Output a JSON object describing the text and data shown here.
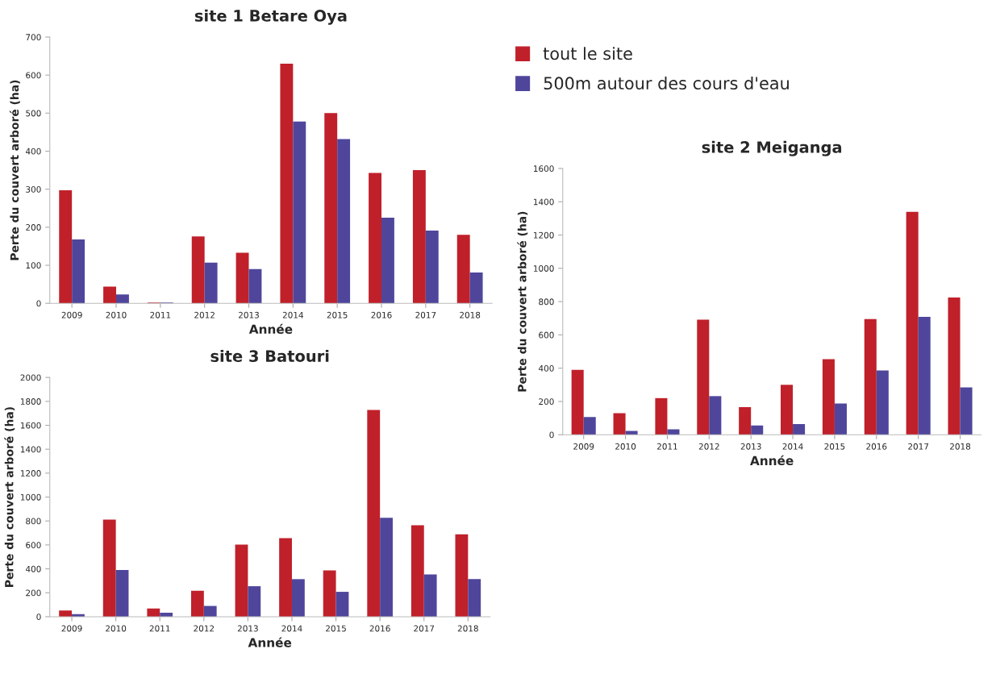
{
  "chart_data": [
    {
      "type": "bar",
      "title": "site 1 Betare Oya",
      "xlabel": "Année",
      "ylabel": "Perte du couvert arboré (ha)",
      "categories": [
        "2009",
        "2010",
        "2011",
        "2012",
        "2013",
        "2014",
        "2015",
        "2016",
        "2017",
        "2018"
      ],
      "ylim": [
        0,
        700
      ],
      "yticks": [
        0,
        100,
        200,
        300,
        400,
        500,
        600,
        700
      ],
      "grid": false,
      "legend": "right",
      "series": [
        {
          "name": "tout le site",
          "color": "#c0202a",
          "values": [
            297,
            44,
            2,
            176,
            133,
            630,
            500,
            343,
            350,
            180
          ]
        },
        {
          "name": "500m autour des cours d'eau",
          "color": "#4f469c",
          "values": [
            168,
            23,
            2,
            107,
            90,
            478,
            432,
            225,
            191,
            81
          ]
        }
      ]
    },
    {
      "type": "bar",
      "title": "site 2 Meiganga",
      "xlabel": "Année",
      "ylabel": "Perte du couvert arboré (ha)",
      "categories": [
        "2009",
        "2010",
        "2011",
        "2012",
        "2013",
        "2014",
        "2015",
        "2016",
        "2017",
        "2018"
      ],
      "ylim": [
        0,
        1600
      ],
      "yticks": [
        0,
        200,
        400,
        600,
        800,
        1000,
        1200,
        1400,
        1600
      ],
      "grid": false,
      "series": [
        {
          "color": "#c0202a",
          "values": [
            390,
            130,
            220,
            692,
            166,
            300,
            454,
            695,
            1340,
            825
          ]
        },
        {
          "color": "#4f469c",
          "values": [
            106,
            23,
            32,
            232,
            55,
            64,
            188,
            386,
            709,
            285
          ]
        }
      ]
    },
    {
      "type": "bar",
      "title": "site 3 Batouri",
      "xlabel": "Année",
      "ylabel": "Perte du couvert arboré (ha)",
      "categories": [
        "2009",
        "2010",
        "2011",
        "2012",
        "2013",
        "2014",
        "2015",
        "2016",
        "2017",
        "2018"
      ],
      "ylim": [
        0,
        2000
      ],
      "yticks": [
        0,
        200,
        400,
        600,
        800,
        1000,
        1200,
        1400,
        1600,
        1800,
        2000
      ],
      "grid": false,
      "series": [
        {
          "color": "#c0202a",
          "values": [
            52,
            812,
            68,
            217,
            602,
            656,
            387,
            1728,
            765,
            689
          ]
        },
        {
          "color": "#4f469c",
          "values": [
            21,
            390,
            33,
            90,
            255,
            314,
            208,
            826,
            354,
            314
          ]
        }
      ]
    }
  ]
}
